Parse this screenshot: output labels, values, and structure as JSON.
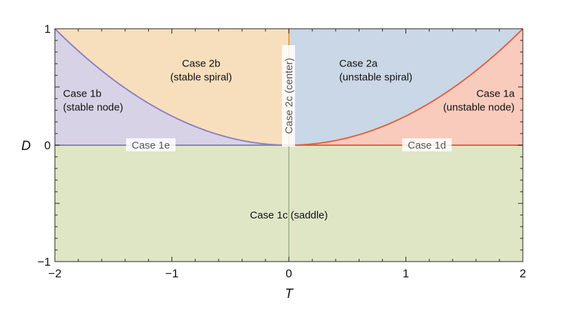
{
  "chart_data": {
    "type": "area",
    "title": "",
    "xlabel": "T",
    "ylabel": "D",
    "xlim": [
      -2,
      2
    ],
    "ylim": [
      -1,
      1
    ],
    "x_ticks": [
      -2,
      -1,
      0,
      1,
      2
    ],
    "x_tick_labels": [
      "−2",
      "−1",
      "0",
      "1",
      "2"
    ],
    "y_ticks": [
      -1,
      0,
      1
    ],
    "y_tick_labels": [
      "−1",
      "0",
      "1"
    ],
    "grid": false,
    "boundary_curve": "D = T^2 / 4",
    "regions": [
      {
        "name": "Case 1a",
        "sublabel": "(unstable node)",
        "color": "#f8cbbd",
        "label_at": [
          1.85,
          0.39
        ]
      },
      {
        "name": "Case 1b",
        "sublabel": "(stable node)",
        "color": "#d8d2e6",
        "label_at": [
          -1.85,
          0.39
        ]
      },
      {
        "name": "Case 1c (saddle)",
        "sublabel": "",
        "color": "#dfe6c6",
        "label_at": [
          0,
          -0.6
        ]
      },
      {
        "name": "Case 2a",
        "sublabel": "(unstable spiral)",
        "color": "#cad7e6",
        "label_at": [
          0.75,
          0.65
        ]
      },
      {
        "name": "Case 2b",
        "sublabel": "(stable spiral)",
        "color": "#f7dfbd",
        "label_at": [
          -0.75,
          0.65
        ]
      }
    ],
    "boundary_labels": [
      {
        "text": "Case 2c (center)",
        "at": [
          0,
          0.5
        ],
        "orientation": "vertical"
      },
      {
        "text": "Case 1d",
        "at": [
          1.18,
          0
        ],
        "orientation": "horizontal"
      },
      {
        "text": "Case 1e",
        "at": [
          -1.18,
          0
        ],
        "orientation": "horizontal"
      }
    ],
    "curve_colors": {
      "right": "#e0603a",
      "left": "#8a7fc4",
      "d_zero_line": "#8a7fc4",
      "center_line": "#e09a3a"
    }
  }
}
